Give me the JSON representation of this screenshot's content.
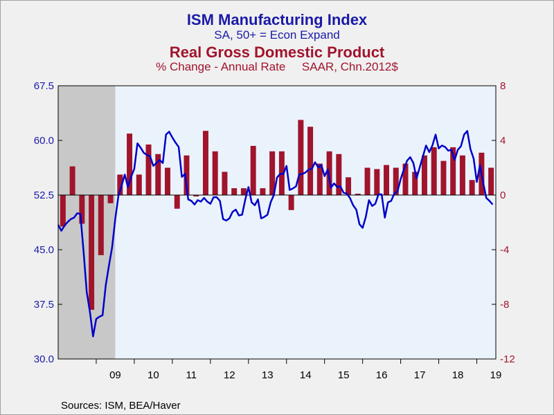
{
  "titles": {
    "ism_title": "ISM Manufacturing Index",
    "ism_subtitle": "SA, 50+ = Econ Expand",
    "gdp_title": "Real Gross Domestic Product",
    "gdp_subtitle": "% Change - Annual Rate     SAAR, Chn.2012$"
  },
  "source": "Sources:  ISM, BEA/Haver",
  "colors": {
    "ism_line": "#0000c8",
    "gdp_bars": "#a0142c",
    "plot_bg": "#eaf3fc",
    "recession": "#c8c8c8"
  },
  "chart_data": {
    "type": "bar+line",
    "x_axis": {
      "start_year": 2008,
      "end_year": 2019.5,
      "tick_labels": [
        "09",
        "10",
        "11",
        "12",
        "13",
        "14",
        "15",
        "16",
        "17",
        "18",
        "19"
      ],
      "tick_years": [
        2009.5,
        2010.5,
        2011.5,
        2012.5,
        2013.5,
        2014.5,
        2015.5,
        2016.5,
        2017.5,
        2018.5,
        2019.5
      ]
    },
    "left_axis": {
      "series": "ISM Manufacturing Index",
      "ylim": [
        30.0,
        67.5
      ],
      "ticks": [
        "67.5",
        "60.0",
        "52.5",
        "45.0",
        "37.5",
        "30.0"
      ],
      "tick_values": [
        67.5,
        60.0,
        52.5,
        45.0,
        37.5,
        30.0
      ]
    },
    "right_axis": {
      "series": "Real Gross Domestic Product",
      "ylim": [
        -12,
        8
      ],
      "ticks": [
        "8",
        "4",
        "0",
        "-4",
        "-8",
        "-12"
      ],
      "tick_values": [
        8,
        4,
        0,
        -4,
        -8,
        -12
      ]
    },
    "recession": {
      "start": 2008.0,
      "end": 2009.5
    },
    "gdp": {
      "quarters": [
        "2008Q1",
        "2008Q2",
        "2008Q3",
        "2008Q4",
        "2009Q1",
        "2009Q2",
        "2009Q3",
        "2009Q4",
        "2010Q1",
        "2010Q2",
        "2010Q3",
        "2010Q4",
        "2011Q1",
        "2011Q2",
        "2011Q3",
        "2011Q4",
        "2012Q1",
        "2012Q2",
        "2012Q3",
        "2012Q4",
        "2013Q1",
        "2013Q2",
        "2013Q3",
        "2013Q4",
        "2014Q1",
        "2014Q2",
        "2014Q3",
        "2014Q4",
        "2015Q1",
        "2015Q2",
        "2015Q3",
        "2015Q4",
        "2016Q1",
        "2016Q2",
        "2016Q3",
        "2016Q4",
        "2017Q1",
        "2017Q2",
        "2017Q3",
        "2017Q4",
        "2018Q1",
        "2018Q2",
        "2018Q3",
        "2018Q4",
        "2019Q1",
        "2019Q2"
      ],
      "values": [
        -2.3,
        2.1,
        -2.1,
        -8.4,
        -4.4,
        -0.6,
        1.5,
        4.5,
        1.5,
        3.7,
        3.0,
        2.0,
        -1.0,
        2.9,
        -0.1,
        4.7,
        3.2,
        1.7,
        0.5,
        0.5,
        3.6,
        0.5,
        3.2,
        3.2,
        -1.1,
        5.5,
        5.0,
        2.3,
        3.2,
        3.0,
        1.3,
        0.1,
        2.0,
        1.9,
        2.2,
        2.0,
        2.3,
        1.7,
        2.9,
        3.5,
        2.5,
        3.5,
        2.9,
        1.1,
        3.1,
        2.0
      ]
    },
    "ism": {
      "start": 2008.0,
      "step": 0.0833333,
      "values": [
        48.4,
        47.6,
        48.3,
        48.8,
        49.2,
        49.4,
        50.0,
        49.9,
        44.8,
        39.2,
        36.5,
        33.1,
        35.5,
        35.8,
        36.0,
        40.1,
        42.8,
        45.3,
        49.2,
        52.4,
        53.8,
        55.3,
        53.6,
        55.0,
        56.1,
        59.6,
        59.0,
        58.3,
        58.0,
        57.8,
        56.5,
        56.9,
        57.3,
        56.9,
        60.8,
        61.2,
        60.4,
        59.7,
        59.1,
        55.0,
        55.4,
        51.9,
        51.7,
        51.2,
        51.8,
        51.6,
        52.1,
        51.6,
        51.3,
        52.2,
        52.2,
        51.7,
        49.2,
        49.0,
        49.3,
        50.2,
        50.5,
        49.7,
        49.8,
        51.9,
        53.6,
        51.5,
        51.1,
        51.9,
        49.3,
        49.5,
        49.8,
        51.5,
        52.5,
        54.9,
        55.4,
        55.4,
        56.5,
        53.2,
        53.4,
        53.7,
        55.3,
        55.4,
        55.6,
        56.0,
        56.1,
        57.0,
        56.3,
        56.6,
        55.1,
        56.0,
        53.5,
        54.1,
        53.6,
        53.7,
        52.8,
        52.7,
        52.1,
        51.1,
        50.5,
        48.5,
        48.0,
        49.5,
        51.8,
        51.0,
        51.3,
        52.6,
        52.6,
        49.4,
        51.5,
        51.7,
        52.7,
        53.0,
        54.7,
        56.0,
        57.2,
        57.7,
        56.9,
        54.8,
        56.3,
        57.8,
        59.3,
        58.4,
        59.3,
        60.8,
        58.9,
        59.3,
        59.1,
        58.6,
        58.7,
        57.3,
        58.7,
        59.2,
        60.8,
        61.3,
        58.8,
        57.5,
        54.3,
        56.6,
        54.2,
        52.1,
        51.7,
        51.2
      ]
    }
  }
}
